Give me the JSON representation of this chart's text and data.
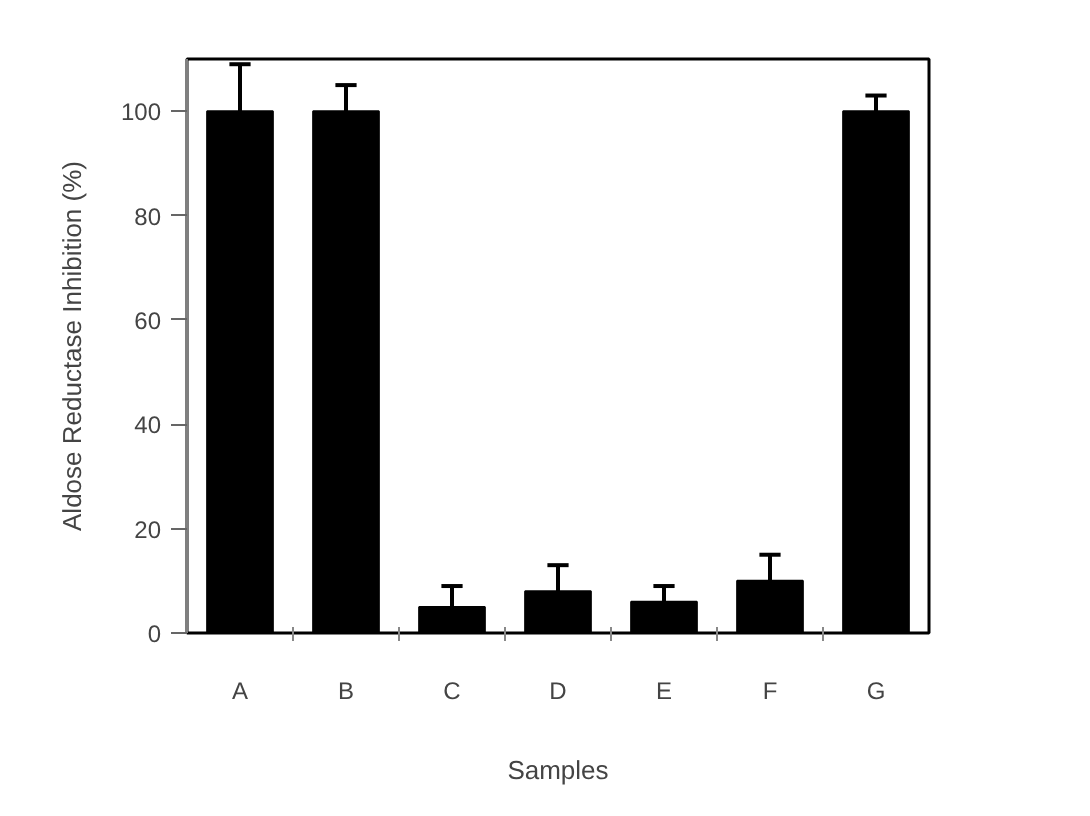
{
  "chart_data": {
    "type": "bar",
    "xlabel": "Samples",
    "ylabel": "Aldose Reductase Inhibition (%)",
    "categories": [
      "A",
      "B",
      "C",
      "D",
      "E",
      "F",
      "G"
    ],
    "values": [
      100,
      100,
      5,
      8,
      6,
      10,
      100
    ],
    "errors": [
      [
        100,
        109
      ],
      [
        100,
        105
      ],
      [
        5,
        9
      ],
      [
        8,
        13
      ],
      [
        6,
        9
      ],
      [
        10,
        15
      ],
      [
        100,
        103
      ]
    ],
    "color": "#000000",
    "ylim": [
      0,
      110
    ],
    "yticks": [
      0,
      20,
      40,
      60,
      80,
      100
    ],
    "grid": false
  }
}
